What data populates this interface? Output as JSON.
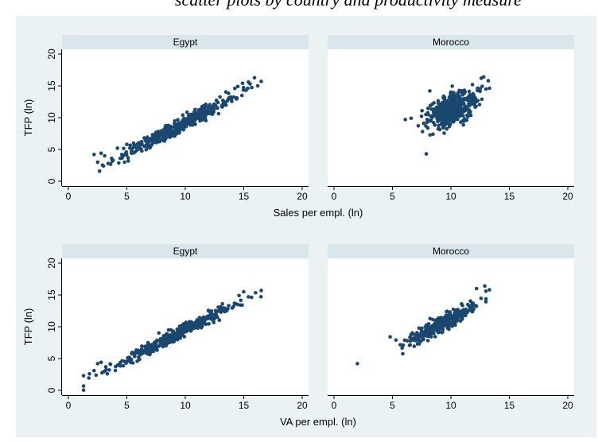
{
  "header_fragment": "scatter plots by country and productivity measure",
  "colors": {
    "marker": "#1a476f",
    "figure_background": "#eaf2f3",
    "panel_background": "#ffffff",
    "strip_background": "#d9e6eb"
  },
  "chart_data": [
    {
      "type": "scatter",
      "row": 1,
      "panels": [
        "Egypt",
        "Morocco"
      ],
      "xlabel": "Sales per empl. (ln)",
      "ylabel": "TFP (ln)",
      "xlim": [
        0,
        20
      ],
      "ylim": [
        0,
        20
      ],
      "xticks": [
        "0",
        "5",
        "10",
        "15",
        "20"
      ],
      "yticks": [
        "0",
        "5",
        "10",
        "15",
        "20"
      ],
      "grid": false,
      "series": [
        {
          "name": "Egypt",
          "relation": {
            "x_range": [
              2.2,
              16.5
            ],
            "slope": 0.97,
            "intercept": -0.5,
            "noise": 0.55
          },
          "points": [
            [
              2.2,
              4.2
            ],
            [
              2.5,
              3.0
            ],
            [
              2.8,
              4.4
            ],
            [
              3.0,
              2.4
            ],
            [
              3.1,
              4.0
            ],
            [
              3.4,
              2.8
            ],
            [
              3.7,
              3.6
            ],
            [
              4.2,
              5.2
            ],
            [
              4.8,
              3.0
            ],
            [
              5.0,
              5.8
            ],
            [
              14.5,
              14.9
            ],
            [
              14.9,
              15.4
            ],
            [
              15.2,
              14.3
            ],
            [
              15.4,
              15.6
            ],
            [
              16.2,
              15.0
            ],
            [
              16.5,
              15.7
            ]
          ]
        },
        {
          "name": "Morocco",
          "relation": {
            "x_range": [
              7.0,
              13.3
            ],
            "slope": 0.78,
            "intercept": 3.5,
            "noise": 1.2
          },
          "points": [
            [
              6.1,
              9.7
            ],
            [
              6.6,
              9.9
            ],
            [
              7.9,
              4.3
            ],
            [
              8.2,
              14.2
            ],
            [
              12.8,
              16.4
            ],
            [
              13.2,
              15.8
            ],
            [
              12.6,
              16.2
            ],
            [
              13.0,
              14.5
            ]
          ]
        }
      ]
    },
    {
      "type": "scatter",
      "row": 2,
      "panels": [
        "Egypt",
        "Morocco"
      ],
      "xlabel": "VA per empl. (ln)",
      "ylabel": "TFP (ln)",
      "xlim": [
        0,
        20
      ],
      "ylim": [
        0,
        20
      ],
      "xticks": [
        "0",
        "5",
        "10",
        "15",
        "20"
      ],
      "yticks": [
        "0",
        "5",
        "10",
        "15",
        "20"
      ],
      "grid": false,
      "series": [
        {
          "name": "Egypt",
          "relation": {
            "x_range": [
              1.3,
              16.5
            ],
            "slope": 0.95,
            "intercept": 0.0,
            "noise": 0.45
          },
          "points": [
            [
              1.3,
              2.3
            ],
            [
              1.8,
              2.6
            ],
            [
              2.2,
              3.1
            ],
            [
              2.5,
              4.2
            ],
            [
              2.8,
              4.4
            ],
            [
              3.2,
              3.7
            ],
            [
              3.5,
              3.2
            ],
            [
              3.6,
              4.1
            ],
            [
              14.6,
              14.9
            ],
            [
              15.0,
              15.5
            ],
            [
              15.4,
              14.7
            ],
            [
              16.5,
              15.7
            ]
          ]
        },
        {
          "name": "Morocco",
          "relation": {
            "x_range": [
              5.2,
              13.0
            ],
            "slope": 0.95,
            "intercept": 1.7,
            "noise": 0.55
          },
          "points": [
            [
              2.0,
              4.2
            ],
            [
              4.8,
              8.4
            ],
            [
              5.3,
              7.9
            ],
            [
              12.9,
              16.4
            ],
            [
              13.3,
              15.8
            ],
            [
              12.2,
              16.0
            ]
          ]
        }
      ]
    }
  ]
}
